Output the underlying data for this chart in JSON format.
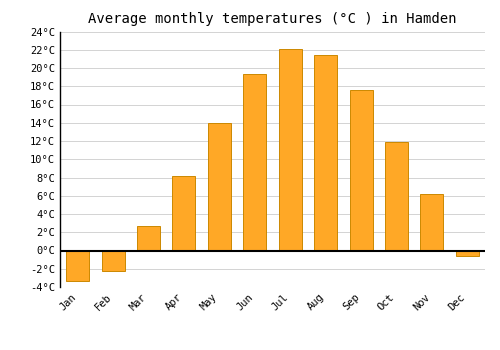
{
  "title": "Average monthly temperatures (°C ) in Hamden",
  "months": [
    "Jan",
    "Feb",
    "Mar",
    "Apr",
    "May",
    "Jun",
    "Jul",
    "Aug",
    "Sep",
    "Oct",
    "Nov",
    "Dec"
  ],
  "values": [
    -3.3,
    -2.3,
    2.7,
    8.2,
    14.0,
    19.3,
    22.1,
    21.4,
    17.6,
    11.9,
    6.2,
    -0.6
  ],
  "bar_color": "#FFA826",
  "bar_edge_color": "#CC8800",
  "background_color": "#ffffff",
  "grid_color": "#cccccc",
  "ylim": [
    -4,
    24
  ],
  "yticks": [
    -4,
    -2,
    0,
    2,
    4,
    6,
    8,
    10,
    12,
    14,
    16,
    18,
    20,
    22,
    24
  ],
  "ytick_labels": [
    "-4°C",
    "-2°C",
    "0°C",
    "2°C",
    "4°C",
    "6°C",
    "8°C",
    "10°C",
    "12°C",
    "14°C",
    "16°C",
    "18°C",
    "20°C",
    "22°C",
    "24°C"
  ],
  "title_fontsize": 10,
  "tick_fontsize": 7.5,
  "font_family": "monospace"
}
